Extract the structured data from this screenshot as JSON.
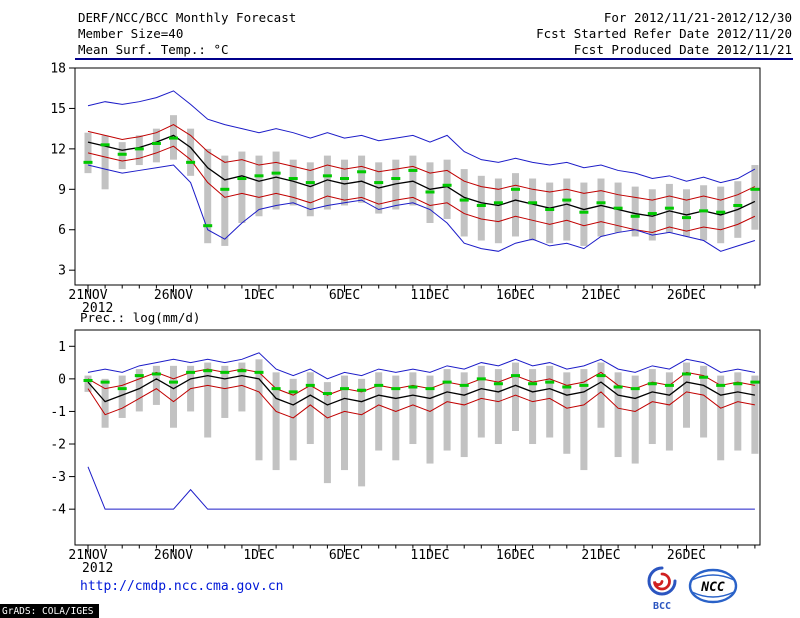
{
  "header": {
    "title": "DERF/NCC/BCC Monthly Forecast",
    "for_range": "For 2012/11/21-2012/12/30",
    "member_size": "Member Size=40",
    "refer_date": "Fcst Started Refer Date 2012/11/20",
    "produced_date": "Fcst Produced Date 2012/11/21"
  },
  "footer": {
    "url": "http://cmdp.ncc.cma.gov.cn",
    "credit": "GrADS: COLA/IGES",
    "logo_bcc": "BCC",
    "logo_ncc": "NCC"
  },
  "colors": {
    "envelope_blue": "#1c1cc8",
    "quartile_red": "#c00000",
    "mean_black": "#000000",
    "marker_green": "#00c800",
    "range_bar_gray": "#c2c2c2",
    "header_rule_blue": "#00008b",
    "url_blue": "#0018d8"
  },
  "chart_data": [
    {
      "type": "line",
      "title": "Mean Surf. Temp.: °C",
      "xlabel": "",
      "ylabel": "°C",
      "days": 40,
      "x_tick_labels": [
        "21NOV",
        "26NOV",
        "1DEC",
        "6DEC",
        "11DEC",
        "16DEC",
        "21DEC",
        "26DEC"
      ],
      "x_tick_days": [
        0,
        5,
        10,
        15,
        20,
        25,
        30,
        35
      ],
      "x_year_label": "2012",
      "ylim": [
        1.9,
        18
      ],
      "yticks": [
        3,
        6,
        9,
        12,
        15,
        18
      ],
      "grid": false,
      "legend": "none",
      "series": [
        {
          "name": "ensemble-max-line",
          "color": "#1c1cc8",
          "width": 1,
          "values": [
            15.2,
            15.5,
            15.3,
            15.5,
            15.8,
            16.3,
            15.3,
            14.2,
            13.8,
            13.5,
            13.2,
            13.5,
            13.2,
            12.8,
            13.2,
            12.8,
            13.0,
            12.6,
            12.8,
            13.0,
            12.5,
            13.0,
            11.8,
            11.2,
            11.0,
            11.3,
            11.0,
            10.8,
            11.0,
            10.6,
            10.8,
            10.4,
            10.2,
            9.8,
            10.0,
            9.6,
            9.9,
            9.5,
            9.8,
            10.5
          ]
        },
        {
          "name": "ensemble-upper-line",
          "color": "#c00000",
          "width": 1,
          "values": [
            13.3,
            13.0,
            12.7,
            12.9,
            13.2,
            13.8,
            13.0,
            11.8,
            11.0,
            11.2,
            10.8,
            11.0,
            10.7,
            10.4,
            10.8,
            10.5,
            10.7,
            10.3,
            10.5,
            10.7,
            10.2,
            10.4,
            9.6,
            9.2,
            9.0,
            9.3,
            9.0,
            8.8,
            9.0,
            8.7,
            8.9,
            8.6,
            8.4,
            8.2,
            8.5,
            8.2,
            8.5,
            8.2,
            8.6,
            9.2
          ]
        },
        {
          "name": "ensemble-mean-line",
          "color": "#000000",
          "width": 1.3,
          "values": [
            12.5,
            12.2,
            11.9,
            12.1,
            12.5,
            13.0,
            12.1,
            10.6,
            9.7,
            10.0,
            9.6,
            9.9,
            9.6,
            9.2,
            9.7,
            9.4,
            9.6,
            9.1,
            9.4,
            9.6,
            9.0,
            9.2,
            8.4,
            8.0,
            7.8,
            8.2,
            7.9,
            7.6,
            7.9,
            7.5,
            7.8,
            7.5,
            7.2,
            7.0,
            7.4,
            7.1,
            7.4,
            7.1,
            7.5,
            8.1
          ]
        },
        {
          "name": "ensemble-lower-line",
          "color": "#c00000",
          "width": 1,
          "values": [
            11.7,
            11.4,
            11.1,
            11.3,
            11.7,
            12.2,
            11.2,
            9.5,
            8.4,
            8.7,
            8.4,
            8.7,
            8.4,
            8.0,
            8.5,
            8.2,
            8.4,
            7.9,
            8.2,
            8.4,
            7.8,
            8.0,
            7.2,
            6.8,
            6.6,
            7.0,
            6.7,
            6.4,
            6.7,
            6.3,
            6.6,
            6.3,
            6.0,
            5.8,
            6.2,
            5.9,
            6.2,
            6.0,
            6.4,
            7.0
          ]
        },
        {
          "name": "ensemble-min-line",
          "color": "#1c1cc8",
          "width": 1,
          "values": [
            10.8,
            10.5,
            10.2,
            10.4,
            10.6,
            10.8,
            9.5,
            6.0,
            5.3,
            6.5,
            7.5,
            7.8,
            8.0,
            7.5,
            7.8,
            8.0,
            8.2,
            7.5,
            7.8,
            8.0,
            7.5,
            6.5,
            5.0,
            4.6,
            4.4,
            5.0,
            5.3,
            4.8,
            5.0,
            4.6,
            5.5,
            5.8,
            6.0,
            5.6,
            5.8,
            5.5,
            5.2,
            4.4,
            4.8,
            5.2
          ]
        }
      ],
      "range_bars": {
        "name": "member-range-bars",
        "color": "#c2c2c2",
        "top": [
          13.2,
          13.0,
          12.5,
          13.0,
          13.5,
          14.5,
          13.5,
          12.0,
          11.5,
          11.8,
          11.5,
          11.8,
          11.2,
          11.0,
          11.5,
          11.2,
          11.5,
          11.0,
          11.2,
          11.5,
          11.0,
          11.2,
          10.5,
          10.0,
          9.8,
          10.2,
          9.8,
          9.5,
          9.8,
          9.5,
          9.8,
          9.5,
          9.2,
          9.0,
          9.4,
          9.0,
          9.3,
          9.2,
          9.6,
          10.8
        ],
        "bottom": [
          10.2,
          9.0,
          10.5,
          10.8,
          11.0,
          11.2,
          10.0,
          5.0,
          4.8,
          6.5,
          7.0,
          7.5,
          7.8,
          7.0,
          7.5,
          7.8,
          8.0,
          7.2,
          7.5,
          7.8,
          6.5,
          6.8,
          5.5,
          5.2,
          5.0,
          5.5,
          5.2,
          5.0,
          5.2,
          4.8,
          5.5,
          5.8,
          5.5,
          5.2,
          5.8,
          5.5,
          5.2,
          5.0,
          5.4,
          6.0
        ]
      },
      "markers": {
        "name": "highlight-markers",
        "color": "#00c800",
        "values": [
          11.0,
          12.3,
          11.6,
          12.0,
          12.4,
          12.8,
          11.0,
          6.3,
          9.0,
          9.8,
          10.0,
          10.2,
          9.8,
          9.5,
          10.0,
          9.8,
          10.3,
          9.5,
          9.8,
          10.4,
          8.8,
          9.3,
          8.2,
          7.8,
          8.0,
          9.0,
          8.0,
          7.5,
          8.2,
          7.3,
          8.0,
          7.6,
          7.0,
          7.2,
          7.6,
          6.9,
          7.4,
          7.3,
          7.8,
          9.0
        ]
      }
    },
    {
      "type": "line",
      "title": "Prec.: log(mm/d)",
      "xlabel": "",
      "ylabel": "log(mm/d)",
      "days": 40,
      "x_tick_labels": [
        "21NOV",
        "26NOV",
        "1DEC",
        "6DEC",
        "11DEC",
        "16DEC",
        "21DEC",
        "26DEC"
      ],
      "x_tick_days": [
        0,
        5,
        10,
        15,
        20,
        25,
        30,
        35
      ],
      "x_year_label": "2012",
      "ylim": [
        -5.1,
        1.5
      ],
      "yticks": [
        -4,
        -3,
        -2,
        -1,
        0,
        1
      ],
      "grid": false,
      "legend": "none",
      "series": [
        {
          "name": "ensemble-max-line",
          "color": "#1c1cc8",
          "width": 1,
          "values": [
            0.2,
            0.3,
            0.2,
            0.4,
            0.5,
            0.6,
            0.5,
            0.6,
            0.5,
            0.6,
            0.8,
            0.3,
            0.1,
            0.3,
            0.0,
            0.2,
            0.1,
            0.3,
            0.2,
            0.3,
            0.2,
            0.4,
            0.3,
            0.5,
            0.4,
            0.6,
            0.4,
            0.5,
            0.3,
            0.4,
            0.6,
            0.3,
            0.2,
            0.4,
            0.3,
            0.6,
            0.5,
            0.2,
            0.3,
            0.2
          ]
        },
        {
          "name": "ensemble-upper-line",
          "color": "#c00000",
          "width": 1,
          "values": [
            0.0,
            -0.3,
            -0.2,
            0.0,
            0.2,
            0.0,
            0.2,
            0.3,
            0.2,
            0.3,
            0.2,
            -0.3,
            -0.5,
            -0.2,
            -0.5,
            -0.3,
            -0.4,
            -0.2,
            -0.3,
            -0.2,
            -0.3,
            -0.1,
            -0.2,
            0.0,
            -0.1,
            0.1,
            -0.1,
            0.0,
            -0.2,
            -0.1,
            0.2,
            -0.2,
            -0.3,
            -0.1,
            -0.2,
            0.2,
            0.1,
            -0.2,
            -0.1,
            -0.2
          ]
        },
        {
          "name": "ensemble-mean-line",
          "color": "#000000",
          "width": 1.3,
          "values": [
            -0.1,
            -0.7,
            -0.5,
            -0.3,
            0.0,
            -0.3,
            0.0,
            0.1,
            0.0,
            0.1,
            0.0,
            -0.6,
            -0.8,
            -0.5,
            -0.8,
            -0.6,
            -0.7,
            -0.5,
            -0.6,
            -0.5,
            -0.6,
            -0.4,
            -0.5,
            -0.3,
            -0.4,
            -0.2,
            -0.4,
            -0.3,
            -0.5,
            -0.4,
            -0.1,
            -0.5,
            -0.6,
            -0.4,
            -0.5,
            -0.1,
            -0.2,
            -0.5,
            -0.4,
            -0.5
          ]
        },
        {
          "name": "ensemble-lower-line",
          "color": "#c00000",
          "width": 1,
          "values": [
            -0.3,
            -1.1,
            -0.9,
            -0.6,
            -0.3,
            -0.7,
            -0.3,
            -0.2,
            -0.3,
            -0.2,
            -0.4,
            -1.0,
            -1.2,
            -0.8,
            -1.2,
            -1.0,
            -1.1,
            -0.8,
            -1.0,
            -0.8,
            -1.0,
            -0.7,
            -0.8,
            -0.6,
            -0.7,
            -0.5,
            -0.7,
            -0.6,
            -0.9,
            -0.8,
            -0.4,
            -0.9,
            -1.0,
            -0.7,
            -0.8,
            -0.4,
            -0.5,
            -0.9,
            -0.7,
            -0.8
          ]
        },
        {
          "name": "ensemble-min-line",
          "color": "#1c1cc8",
          "width": 1,
          "values": [
            -2.7,
            -4.0,
            -4.0,
            -4.0,
            -4.0,
            -4.0,
            -3.4,
            -4.0,
            -4.0,
            -4.0,
            -4.0,
            -4.0,
            -4.0,
            -4.0,
            -4.0,
            -4.0,
            -4.0,
            -4.0,
            -4.0,
            -4.0,
            -4.0,
            -4.0,
            -4.0,
            -4.0,
            -4.0,
            -4.0,
            -4.0,
            -4.0,
            -4.0,
            -4.0,
            -4.0,
            -4.0,
            -4.0,
            -4.0,
            -4.0,
            -4.0,
            -4.0,
            -4.0,
            -4.0,
            -4.0
          ]
        }
      ],
      "range_bars": {
        "name": "member-range-bars",
        "color": "#c2c2c2",
        "top": [
          0.1,
          0.0,
          0.1,
          0.3,
          0.4,
          0.4,
          0.4,
          0.5,
          0.4,
          0.5,
          0.6,
          0.2,
          0.0,
          0.2,
          -0.1,
          0.1,
          0.0,
          0.2,
          0.1,
          0.2,
          0.1,
          0.3,
          0.2,
          0.4,
          0.3,
          0.5,
          0.3,
          0.4,
          0.2,
          0.3,
          0.5,
          0.2,
          0.1,
          0.3,
          0.2,
          0.5,
          0.4,
          0.1,
          0.2,
          0.1
        ],
        "bottom": [
          -0.4,
          -1.5,
          -1.2,
          -1.0,
          -0.8,
          -1.5,
          -1.0,
          -1.8,
          -1.2,
          -1.0,
          -2.5,
          -2.8,
          -2.5,
          -2.0,
          -3.2,
          -2.8,
          -3.3,
          -2.2,
          -2.5,
          -2.0,
          -2.6,
          -2.2,
          -2.4,
          -1.8,
          -2.0,
          -1.6,
          -2.0,
          -1.8,
          -2.3,
          -2.8,
          -1.5,
          -2.4,
          -2.6,
          -2.0,
          -2.2,
          -1.5,
          -1.8,
          -2.5,
          -2.2,
          -2.3
        ]
      },
      "markers": {
        "name": "highlight-markers",
        "color": "#00c800",
        "values": [
          -0.05,
          -0.1,
          -0.3,
          0.1,
          0.15,
          -0.1,
          0.2,
          0.25,
          0.2,
          0.25,
          0.2,
          -0.3,
          -0.4,
          -0.2,
          -0.45,
          -0.3,
          -0.35,
          -0.2,
          -0.3,
          -0.25,
          -0.3,
          -0.1,
          -0.2,
          0.0,
          -0.15,
          0.1,
          -0.15,
          -0.1,
          -0.25,
          -0.2,
          0.1,
          -0.25,
          -0.3,
          -0.15,
          -0.2,
          0.15,
          0.05,
          -0.2,
          -0.15,
          -0.1
        ]
      }
    }
  ]
}
